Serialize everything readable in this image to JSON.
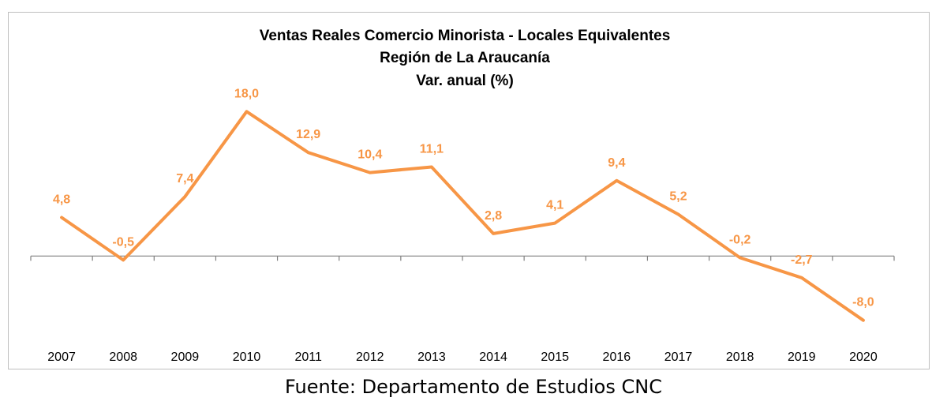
{
  "chart_data": {
    "type": "line",
    "title": "Ventas Reales Comercio Minorista - Locales Equivalentes",
    "subtitle": "Región de La Araucanía",
    "subtitle2": "Var. anual (%)",
    "categories": [
      "2007",
      "2008",
      "2009",
      "2010",
      "2011",
      "2012",
      "2013",
      "2014",
      "2015",
      "2016",
      "2017",
      "2018",
      "2019",
      "2020"
    ],
    "series": [
      {
        "values": [
          4.8,
          -0.5,
          7.4,
          18.0,
          12.9,
          10.4,
          11.1,
          2.8,
          4.1,
          9.4,
          5.2,
          -0.2,
          -2.7,
          -8.0
        ],
        "labels": [
          "4,8",
          "-0,5",
          "7,4",
          "18,0",
          "12,9",
          "10,4",
          "11,1",
          "2,8",
          "4,1",
          "9,4",
          "5,2",
          "-0,2",
          "-2,7",
          "-8,0"
        ]
      }
    ],
    "ylim": [
      -10,
      20
    ],
    "grid": false,
    "line_color": "#F79646",
    "label_color": "#F79646",
    "axis_color": "#808080"
  },
  "source_note": "Fuente: Departamento de Estudios CNC"
}
